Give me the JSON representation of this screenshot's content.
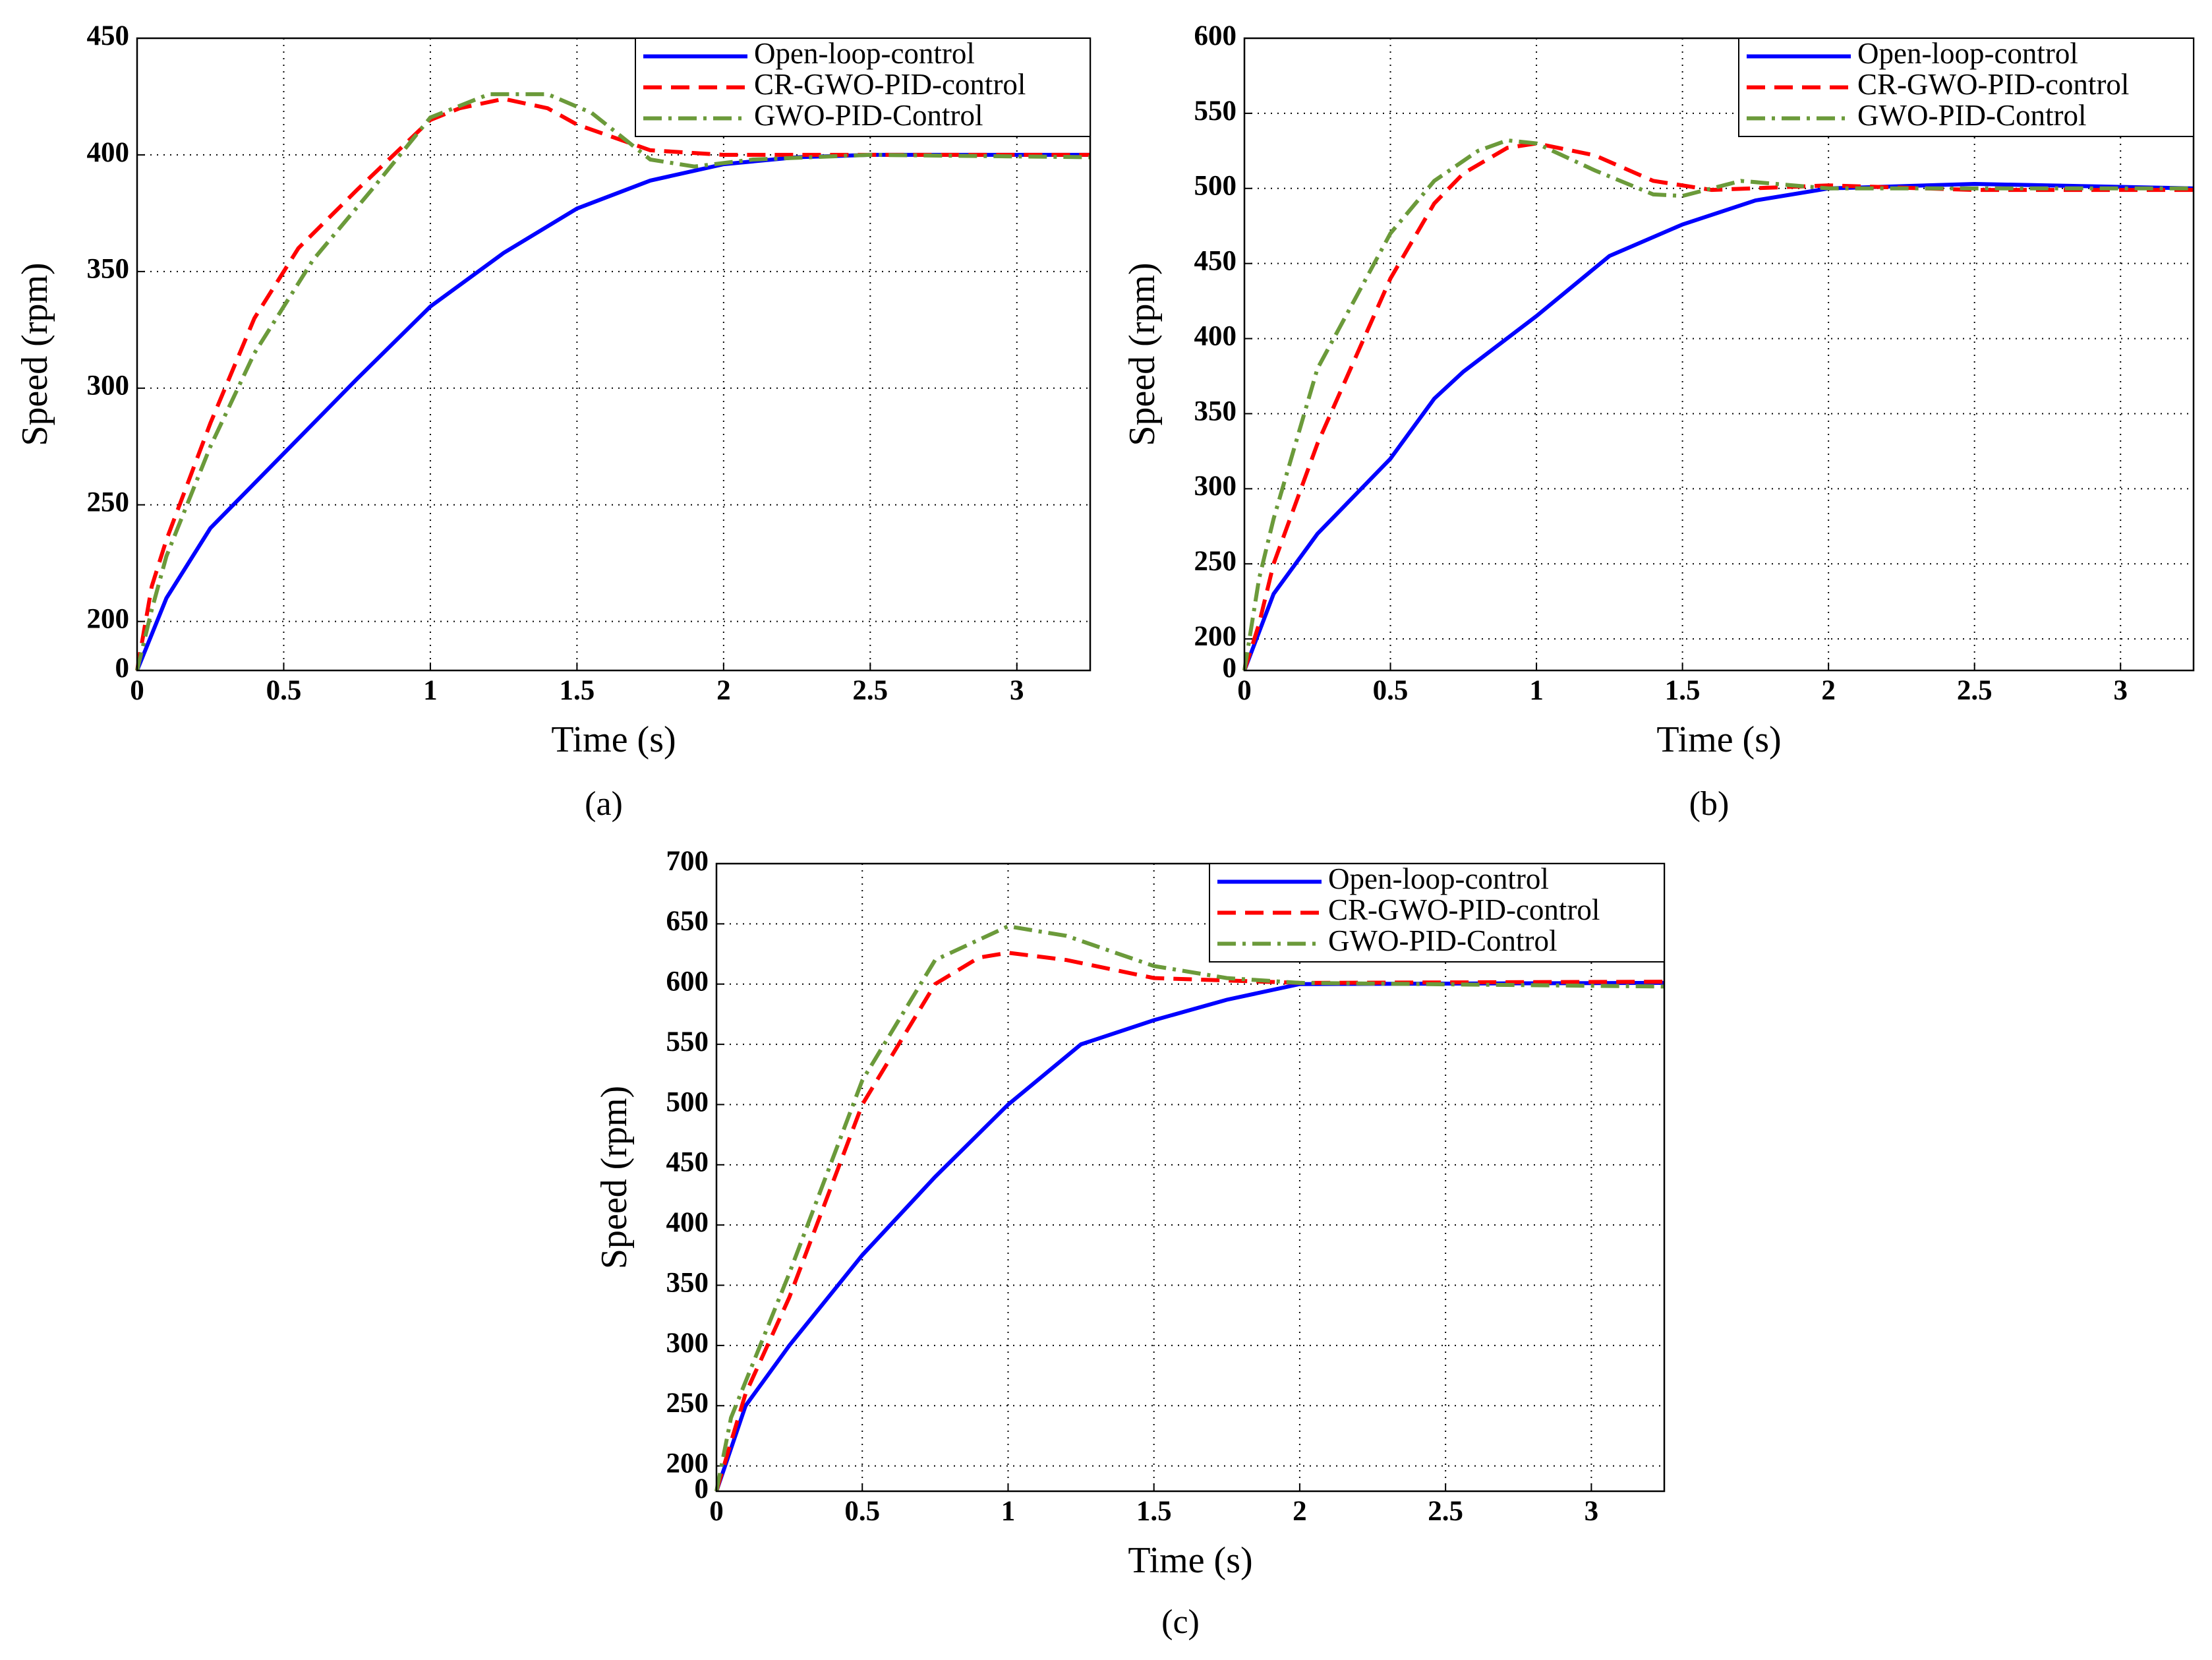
{
  "chart_data": [
    {
      "type": "line",
      "caption": "(a)",
      "xlabel": "Time (s)",
      "ylabel": "Speed (rpm)",
      "xlim": [
        0,
        3.25
      ],
      "xticks": [
        0,
        0.5,
        1,
        1.5,
        2,
        2.5,
        3
      ],
      "ylim": [
        0,
        450
      ],
      "yticks": [
        0,
        200,
        250,
        300,
        350,
        400,
        450
      ],
      "broken_yaxis": true,
      "grid": true,
      "legend": "upper right",
      "series": [
        {
          "name": "Open-loop-control",
          "color": "#0000ff",
          "linestyle": "solid",
          "x": [
            0,
            0.1,
            0.25,
            0.5,
            0.75,
            1,
            1.25,
            1.5,
            1.75,
            2,
            2.25,
            2.5,
            3.25
          ],
          "values": [
            0,
            210,
            240,
            272,
            304,
            335,
            358,
            377,
            389,
            396,
            399,
            400,
            400
          ]
        },
        {
          "name": "CR-GWO-PID-control",
          "color": "#ff0000",
          "linestyle": "dashed",
          "x": [
            0,
            0.05,
            0.1,
            0.25,
            0.4,
            0.55,
            0.75,
            1,
            1.1,
            1.25,
            1.4,
            1.5,
            1.75,
            2,
            3.25
          ],
          "values": [
            0,
            215,
            235,
            285,
            330,
            360,
            385,
            415,
            420,
            424,
            420,
            413,
            402,
            400,
            400
          ]
        },
        {
          "name": "GWO-PID-Control",
          "color": "#6b9a3a",
          "linestyle": "dashdot",
          "x": [
            0,
            0.05,
            0.1,
            0.25,
            0.4,
            0.6,
            0.8,
            1,
            1.2,
            1.4,
            1.55,
            1.75,
            1.9,
            2.1,
            2.5,
            3.25
          ],
          "values": [
            0,
            205,
            228,
            275,
            315,
            355,
            385,
            416,
            426,
            426,
            418,
            398,
            395,
            398,
            400,
            399
          ]
        }
      ]
    },
    {
      "type": "line",
      "caption": "(b)",
      "xlabel": "Time (s)",
      "ylabel": "Speed (rpm)",
      "xlim": [
        0,
        3.25
      ],
      "xticks": [
        0,
        0.5,
        1,
        1.5,
        2,
        2.5,
        3
      ],
      "ylim": [
        0,
        600
      ],
      "yticks": [
        0,
        200,
        250,
        300,
        350,
        400,
        450,
        500,
        550,
        600
      ],
      "broken_yaxis": true,
      "grid": true,
      "legend": "upper right",
      "series": [
        {
          "name": "Open-loop-control",
          "color": "#0000ff",
          "linestyle": "solid",
          "x": [
            0,
            0.1,
            0.25,
            0.5,
            0.65,
            0.75,
            1,
            1.25,
            1.5,
            1.75,
            2,
            2.5,
            3,
            3.25
          ],
          "values": [
            0,
            230,
            270,
            320,
            360,
            378,
            415,
            455,
            476,
            492,
            500,
            503,
            501,
            500
          ]
        },
        {
          "name": "CR-GWO-PID-control",
          "color": "#ff0000",
          "linestyle": "dashed",
          "x": [
            0,
            0.05,
            0.1,
            0.25,
            0.5,
            0.65,
            0.75,
            0.9,
            1,
            1.2,
            1.4,
            1.6,
            2,
            2.5,
            3.25
          ],
          "values": [
            0,
            210,
            250,
            330,
            440,
            490,
            510,
            527,
            530,
            522,
            505,
            499,
            502,
            499,
            499
          ]
        },
        {
          "name": "GWO-PID-Control",
          "color": "#6b9a3a",
          "linestyle": "dashdot",
          "x": [
            0,
            0.05,
            0.1,
            0.25,
            0.5,
            0.65,
            0.8,
            0.9,
            1,
            1.2,
            1.4,
            1.5,
            1.7,
            2,
            3.25
          ],
          "values": [
            0,
            240,
            280,
            380,
            470,
            505,
            525,
            532,
            530,
            512,
            496,
            495,
            505,
            500,
            500
          ]
        }
      ]
    },
    {
      "type": "line",
      "caption": "(c)",
      "xlabel": "Time (s)",
      "ylabel": "Speed (rpm)",
      "xlim": [
        0,
        3.25
      ],
      "xticks": [
        0,
        0.5,
        1,
        1.5,
        2,
        2.5,
        3
      ],
      "ylim": [
        0,
        700
      ],
      "yticks": [
        0,
        200,
        250,
        300,
        350,
        400,
        450,
        500,
        550,
        600,
        650,
        700
      ],
      "broken_yaxis": true,
      "grid": true,
      "legend": "upper right",
      "series": [
        {
          "name": "Open-loop-control",
          "color": "#0000ff",
          "linestyle": "solid",
          "x": [
            0,
            0.1,
            0.25,
            0.5,
            0.75,
            1,
            1.25,
            1.5,
            1.75,
            2,
            3.25
          ],
          "values": [
            0,
            250,
            300,
            375,
            440,
            500,
            550,
            570,
            587,
            600,
            601
          ]
        },
        {
          "name": "CR-GWO-PID-control",
          "color": "#ff0000",
          "linestyle": "dashed",
          "x": [
            0,
            0.05,
            0.1,
            0.25,
            0.5,
            0.75,
            0.9,
            1,
            1.2,
            1.5,
            2,
            3.25
          ],
          "values": [
            0,
            220,
            260,
            340,
            500,
            600,
            622,
            626,
            620,
            605,
            601,
            602
          ]
        },
        {
          "name": "GWO-PID-Control",
          "color": "#6b9a3a",
          "linestyle": "dashdot",
          "x": [
            0,
            0.05,
            0.1,
            0.25,
            0.5,
            0.75,
            1,
            1.2,
            1.5,
            1.75,
            2,
            3.25
          ],
          "values": [
            0,
            240,
            270,
            360,
            520,
            620,
            648,
            640,
            615,
            605,
            601,
            598
          ]
        }
      ]
    }
  ]
}
